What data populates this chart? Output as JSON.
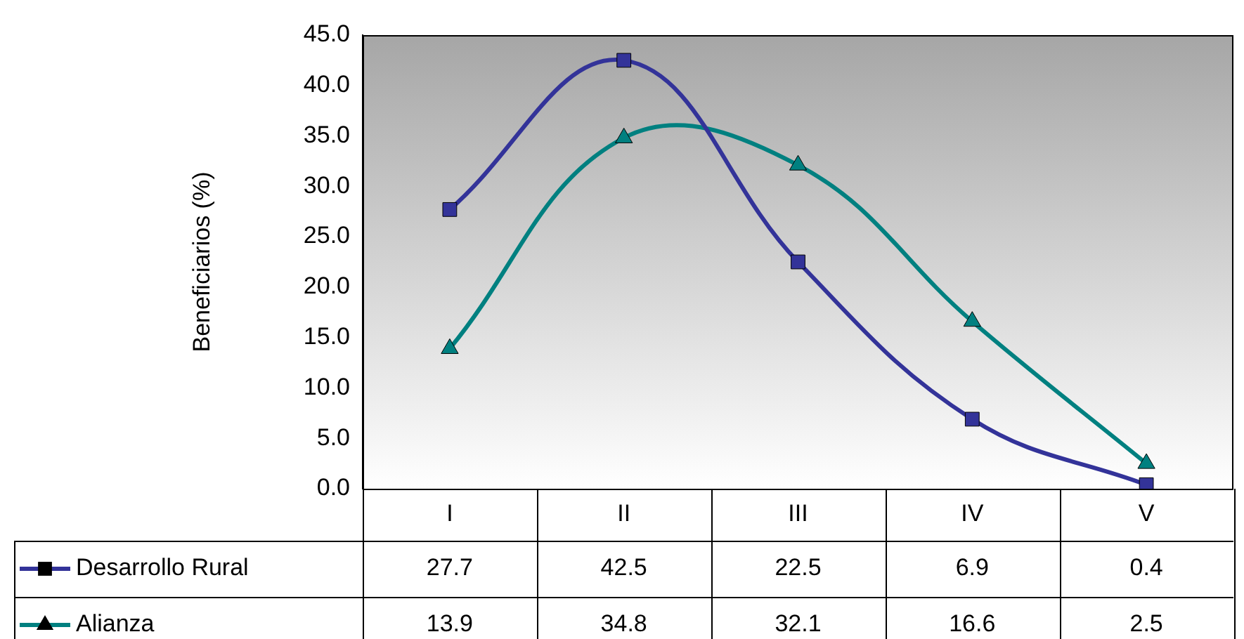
{
  "chart_data": {
    "type": "line",
    "ylabel": "Beneficiarios (%)",
    "categories": [
      "I",
      "II",
      "III",
      "IV",
      "V"
    ],
    "series": [
      {
        "name": "Desarrollo Rural",
        "color": "#333399",
        "marker": "square",
        "values": [
          27.7,
          42.5,
          22.5,
          6.9,
          0.4
        ]
      },
      {
        "name": "Alianza",
        "color": "#008080",
        "marker": "triangle",
        "values": [
          13.9,
          34.8,
          32.1,
          16.6,
          2.5
        ]
      }
    ],
    "ylim": [
      0,
      45
    ],
    "yticks": [
      {
        "value": 0,
        "label": "0.0"
      },
      {
        "value": 5,
        "label": "5.0"
      },
      {
        "value": 10,
        "label": "10.0"
      },
      {
        "value": 15,
        "label": "15.0"
      },
      {
        "value": 20,
        "label": "20.0"
      },
      {
        "value": 25,
        "label": "25.0"
      },
      {
        "value": 30,
        "label": "30.0"
      },
      {
        "value": 35,
        "label": "35.0"
      },
      {
        "value": 40,
        "label": "40.0"
      },
      {
        "value": 45,
        "label": "45.0"
      }
    ],
    "grid": false,
    "legend": "bottom",
    "data_labels": true
  }
}
